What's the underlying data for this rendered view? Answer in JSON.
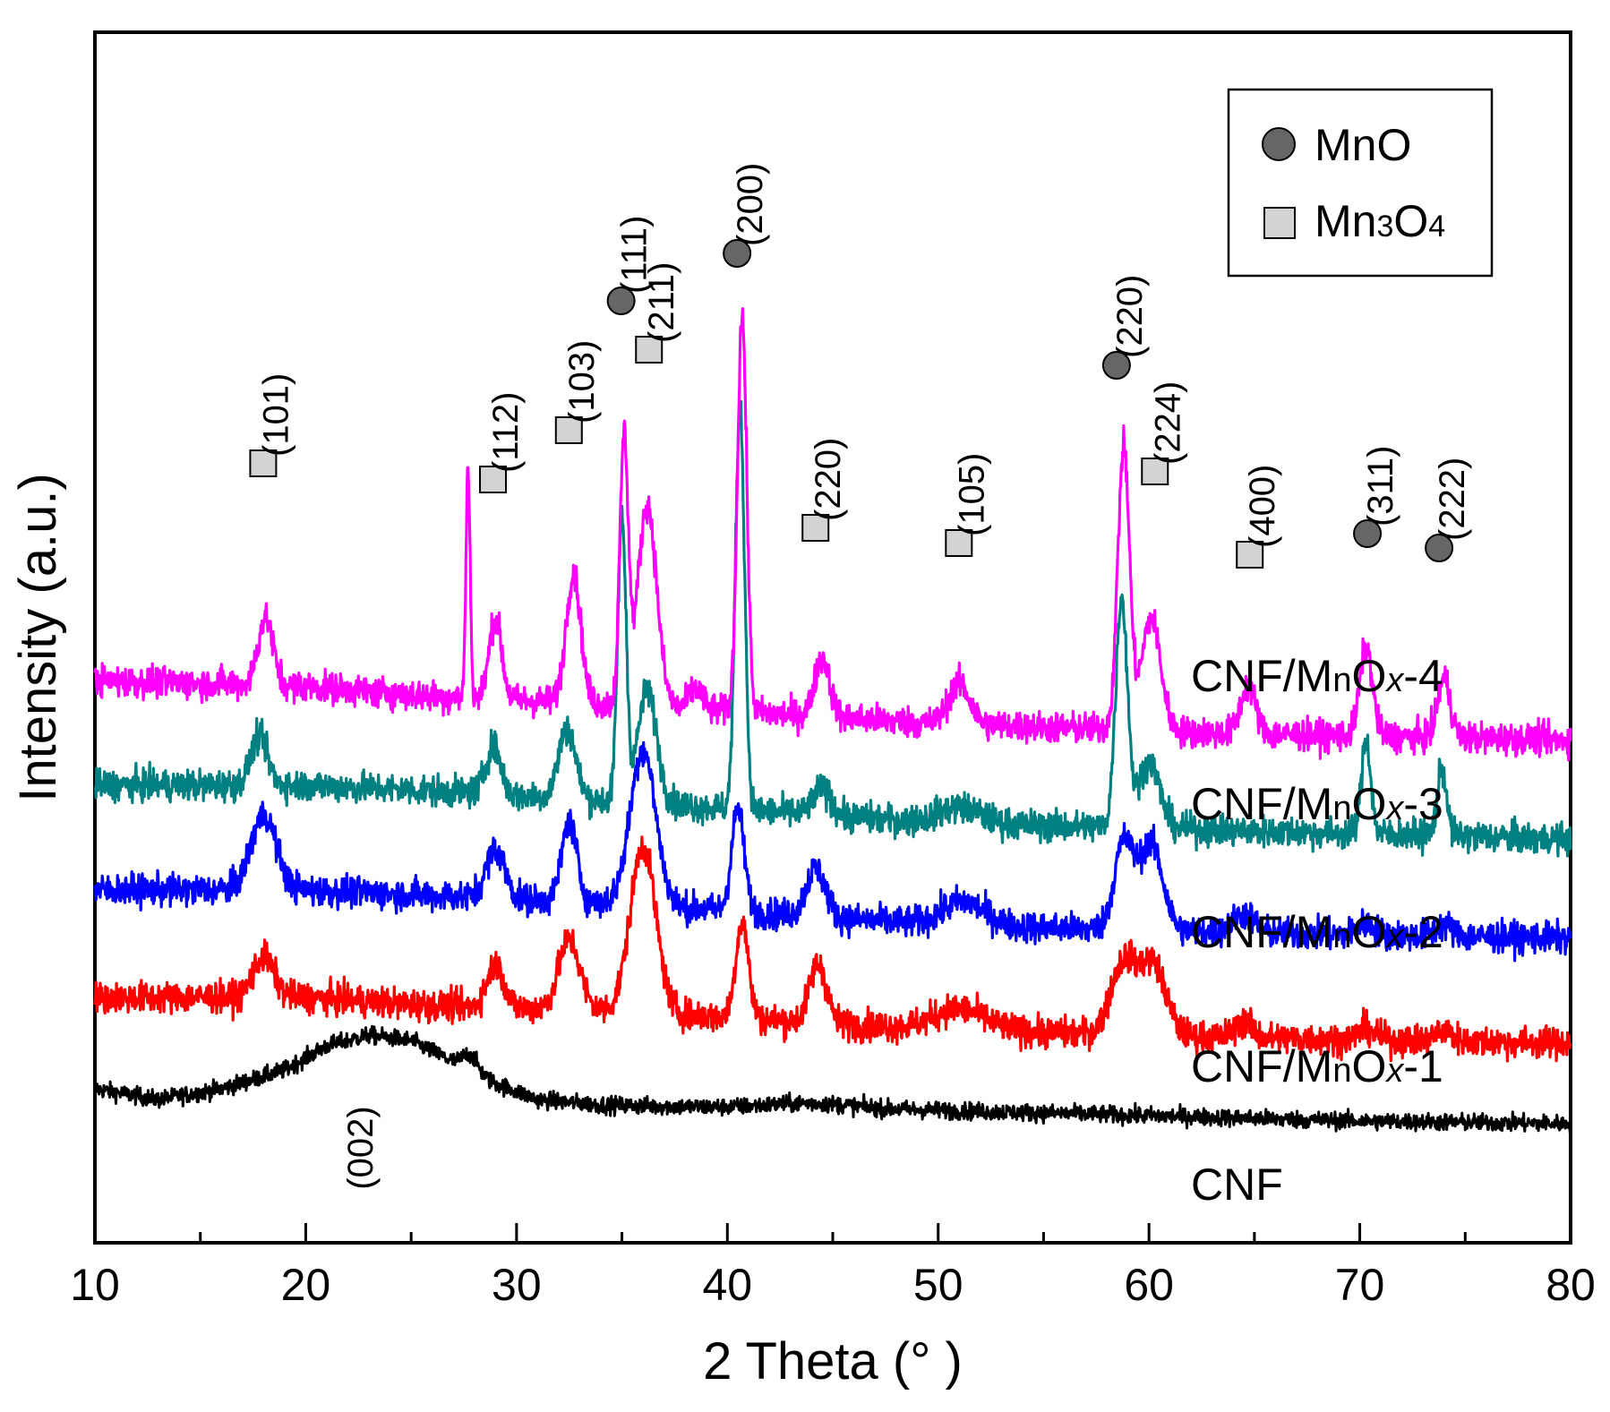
{
  "chart_data": {
    "type": "line",
    "title": "",
    "xlabel": "2 Theta (° )",
    "ylabel": "Intensity (a.u.)",
    "xlim": [
      10,
      80
    ],
    "xticks": [
      10,
      20,
      30,
      40,
      50,
      60,
      70,
      80
    ],
    "xtick_labels": [
      "10",
      "20",
      "30",
      "40",
      "50",
      "60",
      "70",
      "80"
    ],
    "grid": false,
    "legend": {
      "position": "top-right",
      "entries": [
        {
          "marker": "circle",
          "label": "MnO",
          "color": "#666666"
        },
        {
          "marker": "square",
          "label": "Mn3O4",
          "label_main": "Mn",
          "label_sub1": "3",
          "label_mid": "O",
          "label_sub2": "4",
          "color": "#d3d3d3"
        }
      ]
    },
    "series": [
      {
        "name": "CNF",
        "label": "CNF",
        "color": "#000000",
        "offset": 0,
        "noise": 0.55,
        "end_level": 1.0,
        "baseline": [
          [
            10,
            1.8
          ],
          [
            13,
            1.4
          ],
          [
            16,
            1.8
          ],
          [
            19,
            2.5
          ],
          [
            21,
            3.4
          ],
          [
            23,
            3.8
          ],
          [
            25,
            3.6
          ],
          [
            27,
            2.8
          ],
          [
            29,
            2.0
          ],
          [
            31,
            1.4
          ],
          [
            34,
            1.2
          ],
          [
            40,
            1.1
          ],
          [
            50,
            1.0
          ],
          [
            60,
            0.8
          ],
          [
            70,
            0.6
          ],
          [
            80,
            0.5
          ]
        ],
        "peaks": [
          [
            27.8,
            0.6,
            0.35
          ],
          [
            44,
            0.2,
            2.0
          ]
        ]
      },
      {
        "name": "CNF/MnOx-1",
        "label": "CNF/MnOx-1",
        "label_prefix": "CNF/M",
        "label_n": "n",
        "label_o": "O",
        "label_x": "x",
        "label_suffix": "-1",
        "color": "#ff0000",
        "offset": 10,
        "noise": 1.0,
        "end_level": 0,
        "baseline": [
          [
            10,
            1.5
          ],
          [
            20,
            1.5
          ],
          [
            26,
            1.2
          ],
          [
            35,
            1.0
          ],
          [
            50,
            0.3
          ],
          [
            65,
            0
          ],
          [
            80,
            -0.2
          ]
        ],
        "peaks": [
          [
            18.0,
            1.5,
            0.5
          ],
          [
            29.0,
            1.6,
            0.4
          ],
          [
            32.5,
            2.6,
            0.5
          ],
          [
            36.0,
            6.2,
            0.6
          ],
          [
            40.7,
            3.6,
            0.3
          ],
          [
            44.3,
            2.2,
            0.4
          ],
          [
            51,
            0.8,
            1.2
          ],
          [
            58.8,
            2.7,
            0.6
          ],
          [
            60.2,
            2.6,
            0.6
          ],
          [
            64.5,
            0.6,
            0.4
          ],
          [
            70.3,
            0.4,
            0.4
          ],
          [
            74,
            0.4,
            0.4
          ]
        ]
      },
      {
        "name": "CNF/MnOx-2",
        "label": "CNF/MnOx-2",
        "label_prefix": "CNF/M",
        "label_n": "n",
        "label_o": "O",
        "label_x": "x",
        "label_suffix": "-2",
        "color": "#0000ff",
        "offset": 20,
        "noise": 1.0,
        "end_level": 0,
        "baseline": [
          [
            10,
            1.8
          ],
          [
            20,
            1.8
          ],
          [
            26,
            1.6
          ],
          [
            35,
            1.3
          ],
          [
            50,
            0.5
          ],
          [
            65,
            0.2
          ],
          [
            80,
            0
          ]
        ],
        "peaks": [
          [
            18.0,
            2.8,
            0.6
          ],
          [
            29.0,
            1.8,
            0.45
          ],
          [
            32.5,
            3.0,
            0.35
          ],
          [
            36.0,
            5.8,
            0.6
          ],
          [
            40.5,
            3.8,
            0.3
          ],
          [
            44.2,
            1.8,
            0.45
          ],
          [
            51.2,
            0.9,
            1.0
          ],
          [
            58.8,
            3.2,
            0.45
          ],
          [
            60.1,
            3.2,
            0.55
          ],
          [
            64.5,
            0.7,
            0.5
          ],
          [
            70.3,
            0.4,
            0.4
          ],
          [
            74,
            0.4,
            0.4
          ]
        ]
      },
      {
        "name": "CNF/MnOx-3",
        "label": "CNF/MnOx-3",
        "label_prefix": "CNF/M",
        "label_n": "n",
        "label_o": "O",
        "label_x": "x",
        "label_suffix": "-3",
        "color": "#008080",
        "offset": 30,
        "noise": 1.0,
        "end_level": 0,
        "baseline": [
          [
            10,
            2.0
          ],
          [
            20,
            2.0
          ],
          [
            26,
            1.8
          ],
          [
            35,
            1.4
          ],
          [
            50,
            0.6
          ],
          [
            65,
            0.3
          ],
          [
            80,
            0
          ]
        ],
        "peaks": [
          [
            17.8,
            1.8,
            0.4
          ],
          [
            28.9,
            1.8,
            0.35
          ],
          [
            32.4,
            2.6,
            0.4
          ],
          [
            35.0,
            10.5,
            0.2
          ],
          [
            36.2,
            4.2,
            0.45
          ],
          [
            40.6,
            15.0,
            0.22
          ],
          [
            44.5,
            1.0,
            0.4
          ],
          [
            51,
            0.6,
            1.0
          ],
          [
            58.7,
            8.5,
            0.28
          ],
          [
            60.0,
            2.5,
            0.5
          ],
          [
            70.3,
            3.5,
            0.22
          ],
          [
            73.9,
            2.5,
            0.22
          ]
        ]
      },
      {
        "name": "CNF/MnOx-4",
        "label": "CNF/MnOx-4",
        "label_prefix": "CNF/M",
        "label_n": "n",
        "label_o": "O",
        "label_x": "x",
        "label_suffix": "-4",
        "color": "#ff00ff",
        "offset": 40,
        "noise": 1.0,
        "end_level": 0,
        "baseline": [
          [
            10,
            2.2
          ],
          [
            20,
            2.0
          ],
          [
            26,
            1.6
          ],
          [
            35,
            1.3
          ],
          [
            50,
            0.6
          ],
          [
            65,
            0.2
          ],
          [
            80,
            0
          ]
        ],
        "peaks": [
          [
            18.1,
            2.5,
            0.35
          ],
          [
            27.7,
            8.5,
            0.1
          ],
          [
            29.0,
            3.0,
            0.3
          ],
          [
            32.7,
            4.8,
            0.35
          ],
          [
            35.1,
            9.8,
            0.2
          ],
          [
            36.2,
            7.5,
            0.45
          ],
          [
            38.5,
            0.8,
            0.3
          ],
          [
            40.7,
            14.8,
            0.22
          ],
          [
            44.5,
            2.2,
            0.35
          ],
          [
            51.0,
            1.5,
            0.5
          ],
          [
            58.8,
            10.5,
            0.28
          ],
          [
            60.1,
            4.2,
            0.45
          ],
          [
            64.7,
            1.8,
            0.35
          ],
          [
            70.3,
            3.3,
            0.3
          ],
          [
            74.0,
            2.2,
            0.3
          ]
        ]
      }
    ],
    "peak_annotations": [
      {
        "x": 18.3,
        "label": "(101)",
        "phase": "Mn3O4"
      },
      {
        "x": 29.2,
        "label": "(112)",
        "phase": "Mn3O4"
      },
      {
        "x": 32.8,
        "label": "(103)",
        "phase": "Mn3O4"
      },
      {
        "x": 35.3,
        "label": "(111)",
        "phase": "MnO"
      },
      {
        "x": 36.6,
        "label": "(211)",
        "phase": "Mn3O4"
      },
      {
        "x": 40.8,
        "label": "(200)",
        "phase": "MnO"
      },
      {
        "x": 44.5,
        "label": "(220)",
        "phase": "Mn3O4"
      },
      {
        "x": 51.3,
        "label": "(105)",
        "phase": "Mn3O4"
      },
      {
        "x": 58.8,
        "label": "(220)",
        "phase": "MnO"
      },
      {
        "x": 60.6,
        "label": "(224)",
        "phase": "Mn3O4"
      },
      {
        "x": 65.1,
        "label": "(400)",
        "phase": "Mn3O4"
      },
      {
        "x": 70.7,
        "label": "(311)",
        "phase": "MnO"
      },
      {
        "x": 74.1,
        "label": "(222)",
        "phase": "MnO"
      },
      {
        "x": 23.5,
        "label": "(002)",
        "phase": "C"
      }
    ]
  }
}
